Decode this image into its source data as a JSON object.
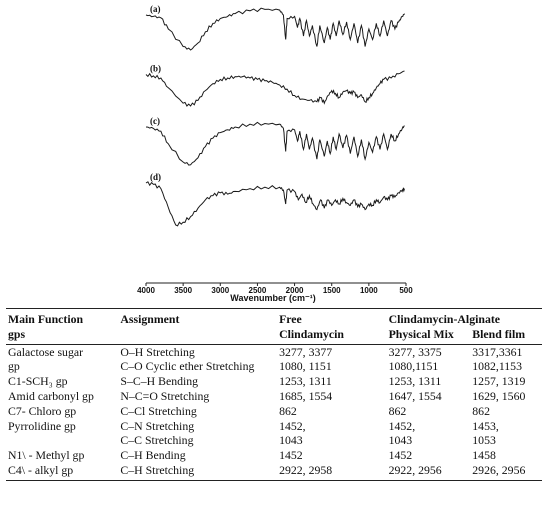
{
  "figure": {
    "spectra_labels": [
      "(a)",
      "(b)",
      "(c)",
      "(d)"
    ],
    "x_ticks": [
      "4000",
      "3500",
      "3000",
      "2500",
      "2000",
      "1500",
      "1000",
      "500"
    ],
    "x_label": "Wavenumber (cm⁻¹)"
  },
  "chart_data": {
    "type": "line",
    "title": "",
    "xlabel": "Wavenumber (cm⁻¹)",
    "ylabel": "",
    "xlim": [
      4000,
      500
    ],
    "x_ticks": [
      4000,
      3500,
      3000,
      2500,
      2000,
      1500,
      1000,
      500
    ],
    "grid": false,
    "series": [
      {
        "name": "(a)",
        "offset": 0,
        "points": [
          [
            4000,
            0.9
          ],
          [
            3900,
            0.88
          ],
          [
            3800,
            0.86
          ],
          [
            3700,
            0.7
          ],
          [
            3500,
            0.45
          ],
          [
            3400,
            0.4
          ],
          [
            3300,
            0.5
          ],
          [
            3200,
            0.66
          ],
          [
            3100,
            0.78
          ],
          [
            3000,
            0.85
          ],
          [
            2900,
            0.88
          ],
          [
            2800,
            0.92
          ],
          [
            2600,
            0.96
          ],
          [
            2400,
            0.98
          ],
          [
            2200,
            0.97
          ],
          [
            2150,
            0.9
          ],
          [
            2120,
            0.55
          ],
          [
            2100,
            0.85
          ],
          [
            2000,
            0.88
          ],
          [
            1960,
            0.72
          ],
          [
            1930,
            0.85
          ],
          [
            1880,
            0.6
          ],
          [
            1840,
            0.82
          ],
          [
            1800,
            0.6
          ],
          [
            1760,
            0.75
          ],
          [
            1700,
            0.45
          ],
          [
            1660,
            0.75
          ],
          [
            1600,
            0.5
          ],
          [
            1560,
            0.72
          ],
          [
            1520,
            0.55
          ],
          [
            1480,
            0.78
          ],
          [
            1440,
            0.6
          ],
          [
            1400,
            0.82
          ],
          [
            1350,
            0.62
          ],
          [
            1300,
            0.8
          ],
          [
            1250,
            0.55
          ],
          [
            1200,
            0.78
          ],
          [
            1150,
            0.5
          ],
          [
            1100,
            0.75
          ],
          [
            1050,
            0.45
          ],
          [
            1000,
            0.7
          ],
          [
            950,
            0.55
          ],
          [
            900,
            0.78
          ],
          [
            850,
            0.6
          ],
          [
            800,
            0.82
          ],
          [
            750,
            0.6
          ],
          [
            700,
            0.82
          ],
          [
            650,
            0.7
          ],
          [
            600,
            0.8
          ],
          [
            550,
            0.88
          ],
          [
            520,
            0.92
          ]
        ]
      },
      {
        "name": "(b)",
        "offset": -1,
        "points": [
          [
            4000,
            0.85
          ],
          [
            3900,
            0.83
          ],
          [
            3800,
            0.8
          ],
          [
            3700,
            0.66
          ],
          [
            3500,
            0.44
          ],
          [
            3400,
            0.4
          ],
          [
            3300,
            0.48
          ],
          [
            3200,
            0.62
          ],
          [
            3100,
            0.72
          ],
          [
            3000,
            0.78
          ],
          [
            2900,
            0.8
          ],
          [
            2800,
            0.82
          ],
          [
            2700,
            0.82
          ],
          [
            2600,
            0.8
          ],
          [
            2500,
            0.78
          ],
          [
            2400,
            0.76
          ],
          [
            2300,
            0.74
          ],
          [
            2200,
            0.7
          ],
          [
            2100,
            0.64
          ],
          [
            2000,
            0.55
          ],
          [
            1900,
            0.5
          ],
          [
            1800,
            0.48
          ],
          [
            1700,
            0.46
          ],
          [
            1650,
            0.52
          ],
          [
            1600,
            0.44
          ],
          [
            1550,
            0.55
          ],
          [
            1500,
            0.62
          ],
          [
            1450,
            0.58
          ],
          [
            1400,
            0.52
          ],
          [
            1350,
            0.6
          ],
          [
            1300,
            0.62
          ],
          [
            1250,
            0.58
          ],
          [
            1200,
            0.6
          ],
          [
            1150,
            0.52
          ],
          [
            1100,
            0.56
          ],
          [
            1050,
            0.46
          ],
          [
            1000,
            0.52
          ],
          [
            950,
            0.58
          ],
          [
            900,
            0.66
          ],
          [
            850,
            0.72
          ],
          [
            800,
            0.78
          ],
          [
            700,
            0.8
          ],
          [
            600,
            0.86
          ],
          [
            520,
            0.9
          ]
        ]
      },
      {
        "name": "(c)",
        "offset": -2,
        "points": [
          [
            4000,
            0.9
          ],
          [
            3900,
            0.88
          ],
          [
            3800,
            0.84
          ],
          [
            3700,
            0.66
          ],
          [
            3500,
            0.4
          ],
          [
            3400,
            0.36
          ],
          [
            3300,
            0.46
          ],
          [
            3200,
            0.62
          ],
          [
            3100,
            0.74
          ],
          [
            3000,
            0.82
          ],
          [
            2900,
            0.86
          ],
          [
            2800,
            0.9
          ],
          [
            2600,
            0.94
          ],
          [
            2400,
            0.95
          ],
          [
            2200,
            0.94
          ],
          [
            2150,
            0.88
          ],
          [
            2120,
            0.55
          ],
          [
            2100,
            0.84
          ],
          [
            2000,
            0.86
          ],
          [
            1960,
            0.7
          ],
          [
            1930,
            0.84
          ],
          [
            1880,
            0.58
          ],
          [
            1840,
            0.8
          ],
          [
            1800,
            0.58
          ],
          [
            1760,
            0.74
          ],
          [
            1700,
            0.44
          ],
          [
            1660,
            0.72
          ],
          [
            1600,
            0.48
          ],
          [
            1560,
            0.7
          ],
          [
            1520,
            0.52
          ],
          [
            1480,
            0.76
          ],
          [
            1440,
            0.58
          ],
          [
            1400,
            0.8
          ],
          [
            1350,
            0.6
          ],
          [
            1300,
            0.78
          ],
          [
            1250,
            0.52
          ],
          [
            1200,
            0.76
          ],
          [
            1150,
            0.48
          ],
          [
            1100,
            0.72
          ],
          [
            1050,
            0.44
          ],
          [
            1000,
            0.68
          ],
          [
            950,
            0.54
          ],
          [
            900,
            0.76
          ],
          [
            850,
            0.58
          ],
          [
            800,
            0.8
          ],
          [
            750,
            0.58
          ],
          [
            700,
            0.8
          ],
          [
            650,
            0.7
          ],
          [
            600,
            0.8
          ],
          [
            550,
            0.88
          ],
          [
            520,
            0.92
          ]
        ]
      },
      {
        "name": "(d)",
        "offset": -3,
        "points": [
          [
            4000,
            0.9
          ],
          [
            3900,
            0.88
          ],
          [
            3800,
            0.82
          ],
          [
            3700,
            0.55
          ],
          [
            3600,
            0.3
          ],
          [
            3500,
            0.34
          ],
          [
            3400,
            0.42
          ],
          [
            3300,
            0.54
          ],
          [
            3200,
            0.66
          ],
          [
            3100,
            0.72
          ],
          [
            3000,
            0.76
          ],
          [
            2900,
            0.74
          ],
          [
            2800,
            0.78
          ],
          [
            2600,
            0.82
          ],
          [
            2400,
            0.84
          ],
          [
            2200,
            0.84
          ],
          [
            2150,
            0.8
          ],
          [
            2120,
            0.6
          ],
          [
            2100,
            0.8
          ],
          [
            2000,
            0.78
          ],
          [
            1950,
            0.66
          ],
          [
            1900,
            0.74
          ],
          [
            1850,
            0.62
          ],
          [
            1800,
            0.72
          ],
          [
            1750,
            0.6
          ],
          [
            1700,
            0.52
          ],
          [
            1650,
            0.66
          ],
          [
            1600,
            0.54
          ],
          [
            1550,
            0.66
          ],
          [
            1500,
            0.58
          ],
          [
            1450,
            0.66
          ],
          [
            1400,
            0.6
          ],
          [
            1350,
            0.68
          ],
          [
            1300,
            0.62
          ],
          [
            1250,
            0.58
          ],
          [
            1200,
            0.66
          ],
          [
            1150,
            0.56
          ],
          [
            1100,
            0.6
          ],
          [
            1050,
            0.52
          ],
          [
            1000,
            0.6
          ],
          [
            950,
            0.58
          ],
          [
            900,
            0.66
          ],
          [
            850,
            0.62
          ],
          [
            800,
            0.7
          ],
          [
            750,
            0.66
          ],
          [
            700,
            0.72
          ],
          [
            650,
            0.7
          ],
          [
            600,
            0.76
          ],
          [
            550,
            0.8
          ],
          [
            520,
            0.82
          ]
        ]
      }
    ]
  },
  "table": {
    "header_row1": [
      "Main Function",
      "Assignment",
      "Free",
      "Clindamycin-Alginate",
      ""
    ],
    "header_row2": [
      "gps",
      "",
      "Clindamycin",
      "Physical Mix",
      "Blend film"
    ],
    "rows": [
      [
        "Galactose sugar",
        "O–H Stretching",
        "3277, 3377",
        "3277, 3375",
        "3317,3361"
      ],
      [
        "gp",
        "C–O Cyclic ether Stretching",
        "1080, 1151",
        "1080,1151",
        "1082,1153"
      ],
      [
        "C1-SCH₃ gp",
        "S–C–H Bending",
        "1253, 1311",
        "1253, 1311",
        "1257, 1319"
      ],
      [
        "Amid carbonyl gp",
        "N–C=O Stretching",
        "1685, 1554",
        "1647, 1554",
        "1629, 1560"
      ],
      [
        "C7- Chloro gp",
        "C–Cl Stretching",
        "862",
        "862",
        "862"
      ],
      [
        "Pyrrolidine gp",
        "C–N Stretching",
        "1452,",
        "1452,",
        "1453,"
      ],
      [
        "",
        "C–C Stretching",
        "1043",
        "1043",
        "1053"
      ],
      [
        "N1\\ - Methyl gp",
        "C–H Bending",
        "1452",
        "1452",
        "1458"
      ],
      [
        "C4\\ - alkyl gp",
        "C–H Stretching",
        "2922, 2958",
        "2922, 2956",
        "2926, 2956"
      ]
    ]
  }
}
